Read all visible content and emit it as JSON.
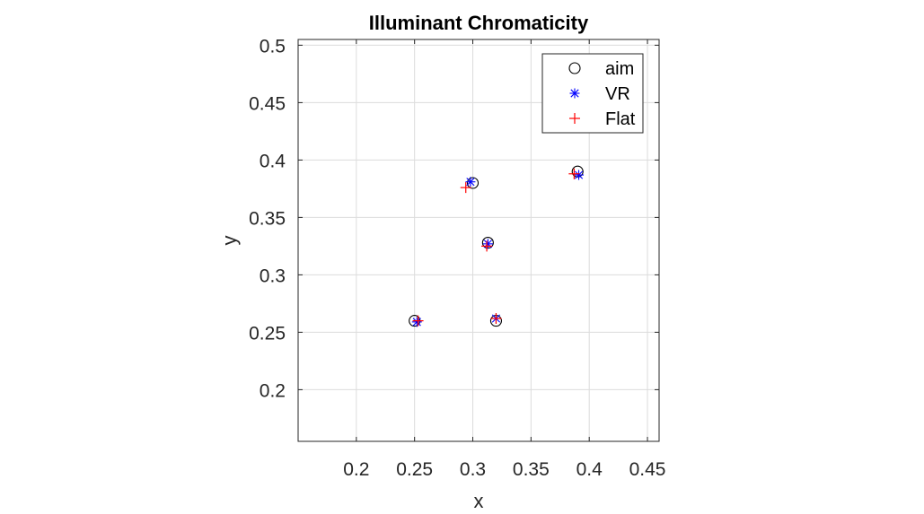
{
  "chart_data": {
    "type": "scatter",
    "title": "Illuminant Chromaticity",
    "xlabel": "x",
    "ylabel": "y",
    "xlim": [
      0.15,
      0.46
    ],
    "ylim": [
      0.155,
      0.505
    ],
    "xticks": [
      0.2,
      0.25,
      0.3,
      0.35,
      0.4,
      0.45
    ],
    "xtick_labels": [
      "0.2",
      "0.25",
      "0.3",
      "0.35",
      "0.4",
      "0.45"
    ],
    "yticks": [
      0.2,
      0.25,
      0.3,
      0.35,
      0.4,
      0.45,
      0.5
    ],
    "ytick_labels": [
      "0.2",
      "0.25",
      "0.3",
      "0.35",
      "0.4",
      "0.45",
      "0.5"
    ],
    "grid": true,
    "legend_position": "top-right",
    "series": [
      {
        "name": "aim",
        "marker": "circle",
        "color": "#000000",
        "x": [
          0.25,
          0.3,
          0.313,
          0.32,
          0.39
        ],
        "y": [
          0.26,
          0.38,
          0.328,
          0.26,
          0.39
        ]
      },
      {
        "name": "VR",
        "marker": "asterisk",
        "color": "#0000ff",
        "x": [
          0.252,
          0.298,
          0.313,
          0.32,
          0.391
        ],
        "y": [
          0.259,
          0.381,
          0.327,
          0.262,
          0.387
        ]
      },
      {
        "name": "Flat",
        "marker": "plus",
        "color": "#ff0000",
        "x": [
          0.253,
          0.294,
          0.312,
          0.32,
          0.387
        ],
        "y": [
          0.26,
          0.376,
          0.325,
          0.262,
          0.388
        ]
      }
    ]
  }
}
